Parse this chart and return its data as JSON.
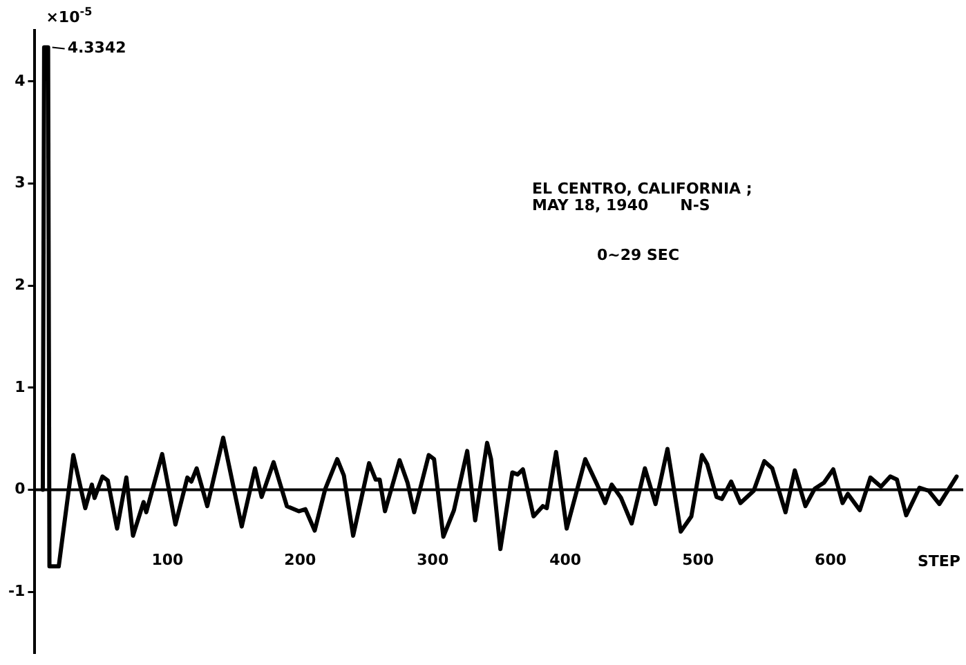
{
  "chart_data": {
    "type": "line",
    "title": "EL CENTRO, CALIFORNIA ;\nMAY 18, 1940      N-S",
    "xlabel": "STEP",
    "ylabel": "×10$^{-5}$",
    "annotations": [
      "0~29 SEC",
      {
        "text": "4.3342",
        "x": 10,
        "y": 4.3342
      }
    ],
    "xlim": [
      0,
      700
    ],
    "xticks": [
      100,
      200,
      300,
      400,
      500,
      600
    ],
    "ylim": [
      -1.6,
      4.5
    ],
    "yticks": [
      -1,
      0,
      1,
      2,
      3,
      4
    ],
    "grid": false,
    "ref_lines": [
      {
        "axis": "y",
        "value": 0,
        "color": "#000000"
      }
    ],
    "legend": false,
    "marker": "none",
    "line_style": "solid",
    "series": [
      {
        "color": "#000000",
        "x": [
          6,
          7,
          10,
          11,
          18,
          29,
          38,
          43,
          45,
          51,
          55,
          62,
          69,
          74,
          82,
          84,
          96,
          106,
          115,
          118,
          122,
          130,
          142,
          156,
          166,
          171,
          180,
          190,
          199,
          204,
          211,
          219,
          228,
          233,
          240,
          252,
          257,
          260,
          264,
          275,
          281,
          286,
          297,
          301,
          308,
          316,
          326,
          332,
          341,
          344,
          351,
          360,
          364,
          368,
          376,
          383,
          386,
          393,
          401,
          415,
          424,
          430,
          435,
          442,
          450,
          460,
          468,
          477,
          487,
          495,
          503,
          507,
          514,
          518,
          525,
          532,
          542,
          550,
          556,
          566,
          573,
          581,
          588,
          595,
          602,
          609,
          613,
          622,
          630,
          638,
          645,
          650,
          657,
          667,
          674,
          682,
          695
        ],
        "values": [
          0,
          4.3342,
          4.3342,
          -0.75,
          -0.75,
          0.34,
          -0.18,
          0.05,
          -0.08,
          0.13,
          0.09,
          -0.38,
          0.12,
          -0.45,
          -0.12,
          -0.22,
          0.35,
          -0.34,
          0.12,
          0.08,
          0.21,
          -0.16,
          0.51,
          -0.36,
          0.21,
          -0.07,
          0.27,
          -0.16,
          -0.21,
          -0.19,
          -0.4,
          0.01,
          0.3,
          0.14,
          -0.45,
          0.26,
          0.1,
          0.1,
          -0.21,
          0.29,
          0.07,
          -0.22,
          0.34,
          0.3,
          -0.46,
          -0.2,
          0.38,
          -0.3,
          0.46,
          0.3,
          -0.58,
          0.17,
          0.15,
          0.2,
          -0.26,
          -0.16,
          -0.18,
          0.37,
          -0.38,
          0.3,
          0.05,
          -0.13,
          0.05,
          -0.08,
          -0.33,
          0.21,
          -0.14,
          0.4,
          -0.41,
          -0.26,
          0.34,
          0.25,
          -0.07,
          -0.09,
          0.08,
          -0.13,
          -0.01,
          0.28,
          0.21,
          -0.22,
          0.19,
          -0.16,
          0.01,
          0.07,
          0.2,
          -0.13,
          -0.04,
          -0.2,
          0.12,
          0.03,
          0.13,
          0.1,
          -0.25,
          0.02,
          -0.01,
          -0.14,
          0.13
        ]
      }
    ]
  }
}
